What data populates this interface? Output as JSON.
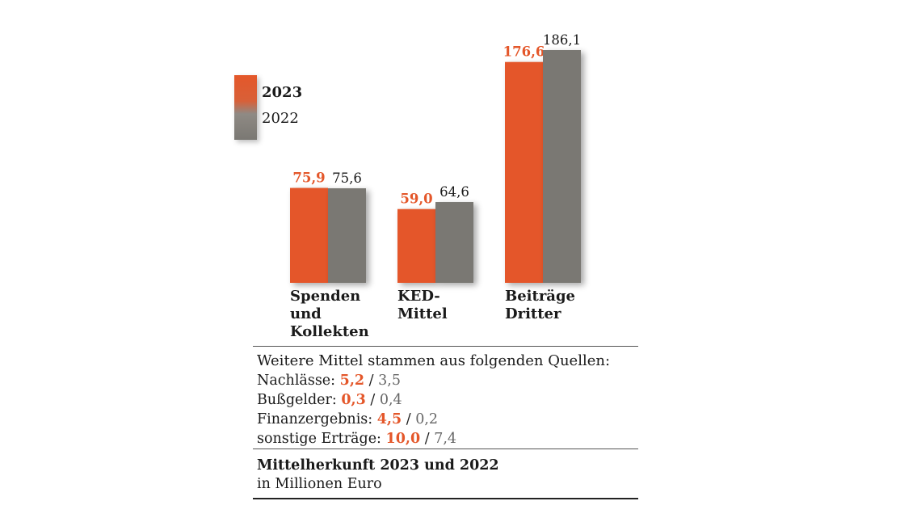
{
  "colors": {
    "cur": "#e4572a",
    "prev": "#7a7873",
    "cur_text": "#e4572a",
    "prev_text": "#1a1a1a"
  },
  "legend": {
    "cur": "2023",
    "prev": "2022"
  },
  "chart_data": {
    "type": "bar",
    "categories": [
      "Spenden\nund\nKollekten",
      "KED-\nMittel",
      "Beiträge\nDritter"
    ],
    "series": [
      {
        "name": "2023",
        "values": [
          75.9,
          59.0,
          176.6
        ],
        "labels": [
          "75,9",
          "59,0",
          "176,6"
        ]
      },
      {
        "name": "2022",
        "values": [
          75.6,
          64.6,
          186.1
        ],
        "labels": [
          "75,6",
          "64,6",
          "186,1"
        ]
      }
    ],
    "ylim": [
      0,
      186.1
    ],
    "grid": false,
    "legend_position": "left"
  },
  "info": {
    "heading": "Weitere Mittel stammen aus folgenden Quellen:",
    "rows": [
      {
        "label": "Nachlässe:",
        "cur": "5,2",
        "sep": " / ",
        "prev": "3,5"
      },
      {
        "label": "Bußgelder:",
        "cur": "0,3",
        "sep": " / ",
        "prev": "0,4"
      },
      {
        "label": "Finanzergebnis:",
        "cur": "4,5",
        "sep": " / ",
        "prev": "0,2"
      },
      {
        "label": "sonstige Erträge:",
        "cur": "10,0",
        "sep": " / ",
        "prev": "7,4"
      }
    ]
  },
  "footer": {
    "title": "Mittelherkunft 2023 und 2022",
    "subtitle": "in Millionen Euro"
  }
}
